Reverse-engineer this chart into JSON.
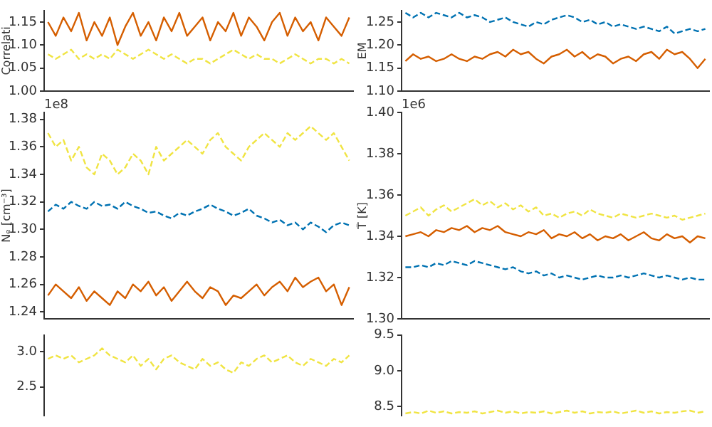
{
  "chart_data": [
    {
      "type": "line",
      "ylabel": "Correlati",
      "categories": [
        null,
        null,
        null,
        null,
        null,
        null,
        null,
        null,
        null,
        null,
        null,
        null,
        null,
        null,
        null,
        null,
        null,
        null,
        null,
        null,
        null,
        null,
        null,
        null,
        null,
        null,
        null,
        null,
        null,
        null,
        null,
        null,
        null,
        null,
        null,
        null,
        null,
        null,
        null,
        null
      ],
      "ylim": [
        1.0,
        1.175
      ],
      "yticks": [
        {
          "value": 1.0,
          "label": "1.00"
        },
        {
          "value": 1.05,
          "label": "1.05"
        },
        {
          "value": 1.1,
          "label": "1.10"
        },
        {
          "value": 1.15,
          "label": "1.15"
        }
      ],
      "tick_labels": "y",
      "series": [
        {
          "color": "#d55e00",
          "line_style": "solid",
          "values": [
            1.15,
            1.12,
            1.16,
            1.13,
            1.17,
            1.11,
            1.15,
            1.12,
            1.16,
            1.1,
            1.14,
            1.17,
            1.12,
            1.15,
            1.11,
            1.16,
            1.13,
            1.17,
            1.12,
            1.14,
            1.16,
            1.11,
            1.15,
            1.13,
            1.17,
            1.12,
            1.16,
            1.14,
            1.11,
            1.15,
            1.17,
            1.12,
            1.16,
            1.13,
            1.15,
            1.11,
            1.16,
            1.14,
            1.12,
            1.16
          ]
        },
        {
          "color": "#f0e442",
          "line_style": "dashed",
          "values": [
            1.08,
            1.07,
            1.08,
            1.09,
            1.07,
            1.08,
            1.07,
            1.08,
            1.07,
            1.09,
            1.08,
            1.07,
            1.08,
            1.09,
            1.08,
            1.07,
            1.08,
            1.07,
            1.06,
            1.07,
            1.07,
            1.06,
            1.07,
            1.08,
            1.09,
            1.08,
            1.07,
            1.08,
            1.07,
            1.07,
            1.06,
            1.07,
            1.08,
            1.07,
            1.06,
            1.07,
            1.07,
            1.06,
            1.07,
            1.06
          ]
        }
      ]
    },
    {
      "type": "line",
      "ylabel": "EM",
      "categories": [
        null,
        null,
        null,
        null,
        null,
        null,
        null,
        null,
        null,
        null,
        null,
        null,
        null,
        null,
        null,
        null,
        null,
        null,
        null,
        null,
        null,
        null,
        null,
        null,
        null,
        null,
        null,
        null,
        null,
        null,
        null,
        null,
        null,
        null,
        null,
        null,
        null,
        null,
        null,
        null
      ],
      "ylim": [
        1.1,
        1.275
      ],
      "yticks": [
        {
          "value": 1.1,
          "label": "1.10"
        },
        {
          "value": 1.15,
          "label": "1.15"
        },
        {
          "value": 1.2,
          "label": "1.20"
        },
        {
          "value": 1.25,
          "label": "1.25"
        }
      ],
      "tick_labels": "y",
      "series": [
        {
          "color": "#0072b2",
          "line_style": "dashed",
          "values": [
            1.27,
            1.26,
            1.27,
            1.26,
            1.27,
            1.265,
            1.26,
            1.27,
            1.26,
            1.265,
            1.26,
            1.25,
            1.255,
            1.26,
            1.25,
            1.245,
            1.24,
            1.25,
            1.245,
            1.255,
            1.26,
            1.265,
            1.26,
            1.25,
            1.255,
            1.245,
            1.25,
            1.24,
            1.245,
            1.24,
            1.235,
            1.24,
            1.235,
            1.23,
            1.24,
            1.225,
            1.23,
            1.235,
            1.23,
            1.235
          ]
        },
        {
          "color": "#d55e00",
          "line_style": "solid",
          "values": [
            1.165,
            1.18,
            1.17,
            1.175,
            1.165,
            1.17,
            1.18,
            1.17,
            1.165,
            1.175,
            1.17,
            1.18,
            1.185,
            1.175,
            1.19,
            1.18,
            1.185,
            1.17,
            1.16,
            1.175,
            1.18,
            1.19,
            1.175,
            1.185,
            1.17,
            1.18,
            1.175,
            1.16,
            1.17,
            1.175,
            1.165,
            1.18,
            1.185,
            1.17,
            1.19,
            1.18,
            1.185,
            1.17,
            1.15,
            1.17
          ]
        }
      ]
    },
    {
      "type": "line",
      "ylabel": "Nₑ [cm⁻³]",
      "annotations": [
        "1e8"
      ],
      "categories": [
        null,
        null,
        null,
        null,
        null,
        null,
        null,
        null,
        null,
        null,
        null,
        null,
        null,
        null,
        null,
        null,
        null,
        null,
        null,
        null,
        null,
        null,
        null,
        null,
        null,
        null,
        null,
        null,
        null,
        null,
        null,
        null,
        null,
        null,
        null,
        null,
        null,
        null,
        null,
        null
      ],
      "ylim": [
        1.235,
        1.385
      ],
      "yticks": [
        1.24,
        1.26,
        1.28,
        {
          "value": 1.3,
          "label": "1.30"
        },
        1.32,
        1.34,
        1.36,
        1.38
      ],
      "tick_labels": "y",
      "series": [
        {
          "color": "#f0e442",
          "line_style": "dashed",
          "values": [
            1.37,
            1.36,
            1.365,
            1.35,
            1.36,
            1.345,
            1.34,
            1.355,
            1.35,
            1.34,
            1.345,
            1.355,
            1.35,
            1.34,
            1.36,
            1.35,
            1.355,
            1.36,
            1.365,
            1.36,
            1.355,
            1.365,
            1.37,
            1.36,
            1.355,
            1.35,
            1.36,
            1.365,
            1.37,
            1.365,
            1.36,
            1.37,
            1.365,
            1.37,
            1.375,
            1.37,
            1.365,
            1.37,
            1.36,
            1.35
          ]
        },
        {
          "color": "#0072b2",
          "line_style": "dashed",
          "values": [
            1.313,
            1.318,
            1.315,
            1.32,
            1.317,
            1.315,
            1.32,
            1.317,
            1.318,
            1.315,
            1.32,
            1.317,
            1.315,
            1.312,
            1.313,
            1.31,
            1.308,
            1.312,
            1.31,
            1.313,
            1.315,
            1.318,
            1.315,
            1.313,
            1.31,
            1.312,
            1.315,
            1.31,
            1.308,
            1.305,
            1.307,
            1.303,
            1.305,
            1.3,
            1.305,
            1.302,
            1.298,
            1.303,
            1.305,
            1.303
          ]
        },
        {
          "color": "#d55e00",
          "line_style": "solid",
          "values": [
            1.252,
            1.26,
            1.255,
            1.25,
            1.258,
            1.248,
            1.255,
            1.25,
            1.245,
            1.255,
            1.25,
            1.26,
            1.255,
            1.262,
            1.252,
            1.258,
            1.248,
            1.255,
            1.262,
            1.255,
            1.25,
            1.258,
            1.255,
            1.245,
            1.252,
            1.25,
            1.255,
            1.26,
            1.252,
            1.258,
            1.262,
            1.255,
            1.265,
            1.258,
            1.262,
            1.265,
            1.255,
            1.26,
            1.245,
            1.258
          ]
        }
      ]
    },
    {
      "type": "line",
      "ylabel": "T̄ [K]",
      "annotations": [
        "1e6"
      ],
      "categories": [
        null,
        null,
        null,
        null,
        null,
        null,
        null,
        null,
        null,
        null,
        null,
        null,
        null,
        null,
        null,
        null,
        null,
        null,
        null,
        null,
        null,
        null,
        null,
        null,
        null,
        null,
        null,
        null,
        null,
        null,
        null,
        null,
        null,
        null,
        null,
        null,
        null,
        null,
        null,
        null
      ],
      "ylim": [
        1.3,
        1.4
      ],
      "yticks": [
        {
          "value": 1.3,
          "label": "1.30"
        },
        1.32,
        1.34,
        1.36,
        1.38,
        {
          "value": 1.4,
          "label": "1.40"
        }
      ],
      "tick_labels": "y",
      "series": [
        {
          "color": "#f0e442",
          "line_style": "dashed",
          "values": [
            1.35,
            1.352,
            1.354,
            1.35,
            1.353,
            1.355,
            1.352,
            1.354,
            1.356,
            1.358,
            1.355,
            1.357,
            1.354,
            1.356,
            1.353,
            1.355,
            1.352,
            1.354,
            1.35,
            1.351,
            1.349,
            1.351,
            1.352,
            1.35,
            1.353,
            1.351,
            1.35,
            1.349,
            1.351,
            1.35,
            1.349,
            1.35,
            1.351,
            1.35,
            1.349,
            1.35,
            1.348,
            1.349,
            1.35,
            1.351
          ]
        },
        {
          "color": "#d55e00",
          "line_style": "solid",
          "values": [
            1.34,
            1.341,
            1.342,
            1.34,
            1.343,
            1.342,
            1.344,
            1.343,
            1.345,
            1.342,
            1.344,
            1.343,
            1.345,
            1.342,
            1.341,
            1.34,
            1.342,
            1.341,
            1.343,
            1.339,
            1.341,
            1.34,
            1.342,
            1.339,
            1.341,
            1.338,
            1.34,
            1.339,
            1.341,
            1.338,
            1.34,
            1.342,
            1.339,
            1.338,
            1.341,
            1.339,
            1.34,
            1.337,
            1.34,
            1.339
          ]
        },
        {
          "color": "#0072b2",
          "line_style": "dashed",
          "values": [
            1.325,
            1.325,
            1.326,
            1.325,
            1.327,
            1.326,
            1.328,
            1.327,
            1.326,
            1.328,
            1.327,
            1.326,
            1.325,
            1.324,
            1.325,
            1.323,
            1.322,
            1.323,
            1.321,
            1.322,
            1.32,
            1.321,
            1.32,
            1.319,
            1.32,
            1.321,
            1.32,
            1.32,
            1.321,
            1.32,
            1.321,
            1.322,
            1.321,
            1.32,
            1.321,
            1.32,
            1.319,
            1.32,
            1.319,
            1.319
          ]
        }
      ]
    },
    {
      "type": "line",
      "categories": [
        null,
        null,
        null,
        null,
        null,
        null,
        null,
        null,
        null,
        null,
        null,
        null,
        null,
        null,
        null,
        null,
        null,
        null,
        null,
        null,
        null,
        null,
        null,
        null,
        null,
        null,
        null,
        null,
        null,
        null,
        null,
        null,
        null,
        null,
        null,
        null,
        null,
        null,
        null,
        null
      ],
      "ylim": [
        2.09,
        3.24
      ],
      "yticks": [
        2.5,
        {
          "value": 3.0,
          "label": "3.0"
        }
      ],
      "tick_labels": "y",
      "series": [
        {
          "color": "#f0e442",
          "line_style": "dashed",
          "values": [
            2.9,
            2.95,
            2.9,
            2.95,
            2.85,
            2.9,
            2.95,
            3.05,
            2.95,
            2.9,
            2.85,
            2.95,
            2.8,
            2.9,
            2.75,
            2.9,
            2.95,
            2.85,
            2.8,
            2.75,
            2.9,
            2.8,
            2.85,
            2.75,
            2.7,
            2.85,
            2.8,
            2.9,
            2.95,
            2.85,
            2.9,
            2.95,
            2.85,
            2.8,
            2.9,
            2.85,
            2.8,
            2.9,
            2.85,
            2.95
          ]
        }
      ]
    },
    {
      "type": "line",
      "categories": [
        null,
        null,
        null,
        null,
        null,
        null,
        null,
        null,
        null,
        null,
        null,
        null,
        null,
        null,
        null,
        null,
        null,
        null,
        null,
        null,
        null,
        null,
        null,
        null,
        null,
        null,
        null,
        null,
        null,
        null,
        null,
        null,
        null,
        null,
        null,
        null,
        null,
        null,
        null,
        null
      ],
      "ylim": [
        8.37,
        9.5
      ],
      "yticks": [
        8.5,
        {
          "value": 9.0,
          "label": "9.0"
        },
        9.5
      ],
      "tick_labels": "y",
      "series": [
        {
          "color": "#f0e442",
          "line_style": "dashed",
          "values": [
            8.4,
            8.42,
            8.4,
            8.44,
            8.41,
            8.43,
            8.4,
            8.42,
            8.41,
            8.43,
            8.4,
            8.42,
            8.44,
            8.41,
            8.43,
            8.4,
            8.42,
            8.41,
            8.43,
            8.4,
            8.42,
            8.44,
            8.41,
            8.43,
            8.4,
            8.42,
            8.41,
            8.43,
            8.4,
            8.42,
            8.44,
            8.41,
            8.43,
            8.4,
            8.42,
            8.41,
            8.43,
            8.44,
            8.41,
            8.43
          ]
        }
      ]
    }
  ]
}
